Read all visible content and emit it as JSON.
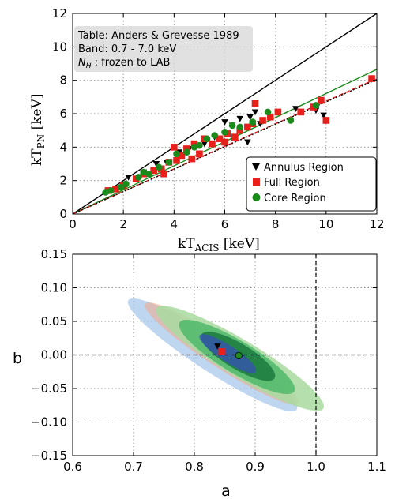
{
  "chart_data": [
    {
      "type": "scatter",
      "xlabel_main": "kT",
      "xlabel_sub": "ACIS",
      "xlabel_unit": " [keV]",
      "ylabel_main": "kT",
      "ylabel_sub": "PN",
      "ylabel_unit": " [keV]",
      "xlim": [
        0,
        12
      ],
      "ylim": [
        0,
        12
      ],
      "xticks": [
        "0",
        "2",
        "4",
        "6",
        "8",
        "10",
        "12"
      ],
      "yticks": [
        "0",
        "2",
        "4",
        "6",
        "8",
        "10",
        "12"
      ],
      "grid": true,
      "annotation": {
        "line1": "Table: Anders & Grevesse 1989",
        "line2": "Band: 0.7 - 7.0 keV",
        "line3_math": "N",
        "line3_sub": "H",
        "line3_rest": " : frozen to LAB"
      },
      "legend_position": "lower-right",
      "reference_line": {
        "x": [
          0,
          12
        ],
        "y": [
          0,
          12
        ],
        "color": "#000000"
      },
      "fit_lines": [
        {
          "series": "Core Region",
          "color": "#1a8a1a",
          "x": [
            0,
            12
          ],
          "y": [
            0,
            8.65
          ],
          "style": "solid"
        },
        {
          "series": "Full Region",
          "color": "#e8201c",
          "x": [
            0,
            12
          ],
          "y": [
            0,
            8.1
          ],
          "style": "dashed"
        },
        {
          "series": "Annulus Region",
          "color": "#000000",
          "x": [
            0,
            12
          ],
          "y": [
            0,
            8.05
          ],
          "style": "dotted"
        }
      ],
      "series": [
        {
          "name": "Annulus Region",
          "marker": "triangle-down",
          "color": "#000000",
          "points": [
            [
              1.4,
              1.4
            ],
            [
              2.2,
              2.2
            ],
            [
              2.8,
              2.5
            ],
            [
              3.3,
              3.0
            ],
            [
              3.7,
              3.1
            ],
            [
              4.2,
              3.7
            ],
            [
              4.6,
              3.9
            ],
            [
              5.2,
              4.2
            ],
            [
              5.6,
              4.6
            ],
            [
              6.0,
              5.5
            ],
            [
              6.3,
              5.3
            ],
            [
              6.6,
              5.7
            ],
            [
              6.9,
              4.3
            ],
            [
              7.0,
              5.8
            ],
            [
              7.2,
              6.1
            ],
            [
              7.4,
              5.4
            ],
            [
              8.8,
              6.3
            ],
            [
              9.9,
              5.9
            ],
            [
              9.6,
              6.2
            ]
          ]
        },
        {
          "name": "Full Region",
          "marker": "square",
          "color": "#e8201c",
          "points": [
            [
              1.4,
              1.4
            ],
            [
              1.7,
              1.5
            ],
            [
              2.0,
              1.7
            ],
            [
              2.5,
              2.1
            ],
            [
              2.8,
              2.4
            ],
            [
              3.2,
              2.6
            ],
            [
              3.5,
              2.7
            ],
            [
              3.6,
              2.4
            ],
            [
              3.8,
              3.1
            ],
            [
              4.0,
              4.0
            ],
            [
              4.1,
              3.2
            ],
            [
              4.3,
              3.5
            ],
            [
              4.5,
              3.9
            ],
            [
              4.7,
              3.3
            ],
            [
              4.8,
              4.2
            ],
            [
              5.0,
              3.6
            ],
            [
              5.2,
              4.5
            ],
            [
              5.5,
              4.2
            ],
            [
              5.8,
              4.5
            ],
            [
              6.0,
              4.3
            ],
            [
              6.1,
              4.8
            ],
            [
              6.4,
              4.6
            ],
            [
              6.6,
              5.0
            ],
            [
              6.9,
              5.2
            ],
            [
              7.1,
              5.4
            ],
            [
              7.2,
              6.6
            ],
            [
              7.5,
              5.6
            ],
            [
              7.8,
              5.8
            ],
            [
              8.1,
              6.1
            ],
            [
              9.0,
              6.1
            ],
            [
              9.5,
              6.4
            ],
            [
              9.8,
              6.8
            ],
            [
              10.0,
              5.6
            ],
            [
              11.8,
              8.1
            ]
          ]
        },
        {
          "name": "Core Region",
          "marker": "circle",
          "color": "#1a8a1a",
          "points": [
            [
              1.3,
              1.3
            ],
            [
              1.5,
              1.4
            ],
            [
              1.9,
              1.6
            ],
            [
              2.1,
              1.8
            ],
            [
              2.6,
              2.2
            ],
            [
              2.8,
              2.5
            ],
            [
              3.0,
              2.4
            ],
            [
              3.4,
              2.8
            ],
            [
              3.8,
              3.1
            ],
            [
              4.1,
              3.6
            ],
            [
              4.5,
              3.7
            ],
            [
              4.8,
              4.0
            ],
            [
              5.0,
              4.1
            ],
            [
              5.3,
              4.5
            ],
            [
              5.6,
              4.7
            ],
            [
              6.0,
              4.9
            ],
            [
              6.3,
              5.3
            ],
            [
              6.6,
              5.2
            ],
            [
              7.1,
              5.5
            ],
            [
              7.7,
              6.1
            ],
            [
              8.6,
              5.6
            ],
            [
              9.6,
              6.5
            ]
          ]
        }
      ]
    },
    {
      "type": "scatter",
      "xlabel": "a",
      "ylabel": "b",
      "xlim": [
        0.6,
        1.1
      ],
      "ylim": [
        -0.15,
        0.15
      ],
      "xticks": [
        "0.6",
        "0.7",
        "0.8",
        "0.9",
        "1.0",
        "1.1"
      ],
      "yticks": [
        "0.15",
        "0.10",
        "0.05",
        "0.00",
        "−0.05",
        "−0.10",
        "−0.15"
      ],
      "grid": true,
      "reference_lines": {
        "b": 0.0,
        "a": 1.0
      },
      "ellipses": [
        {
          "color": "#a8c8ea",
          "opacity": 0.75,
          "cx": 0.83,
          "cy": 0.0,
          "rx": 0.165,
          "ry": 0.018,
          "angle": 33
        },
        {
          "color": "#f4a886",
          "opacity": 0.55,
          "cx": 0.845,
          "cy": 0.002,
          "rx": 0.15,
          "ry": 0.014,
          "angle": 33
        },
        {
          "color": "#a8dba0",
          "opacity": 0.85,
          "cx": 0.875,
          "cy": -0.005,
          "rx": 0.16,
          "ry": 0.02,
          "angle": 31
        },
        {
          "color": "#4fb86a",
          "opacity": 0.85,
          "cx": 0.87,
          "cy": -0.003,
          "rx": 0.11,
          "ry": 0.017,
          "angle": 31
        },
        {
          "color": "#1a7a3e",
          "opacity": 0.85,
          "cx": 0.872,
          "cy": -0.002,
          "rx": 0.07,
          "ry": 0.012,
          "angle": 31
        },
        {
          "color": "#3650b8",
          "opacity": 0.75,
          "cx": 0.855,
          "cy": 0.002,
          "rx": 0.055,
          "ry": 0.005,
          "angle": 33
        }
      ],
      "points": [
        {
          "series": "Annulus Region",
          "marker": "triangle-down",
          "color": "#000000",
          "a": 0.838,
          "b": 0.013
        },
        {
          "series": "Full Region",
          "marker": "square",
          "color": "#e8201c",
          "a": 0.845,
          "b": 0.005
        },
        {
          "series": "Core Region",
          "marker": "circle",
          "color": "#1a8a1a",
          "a": 0.873,
          "b": -0.001
        }
      ]
    }
  ]
}
